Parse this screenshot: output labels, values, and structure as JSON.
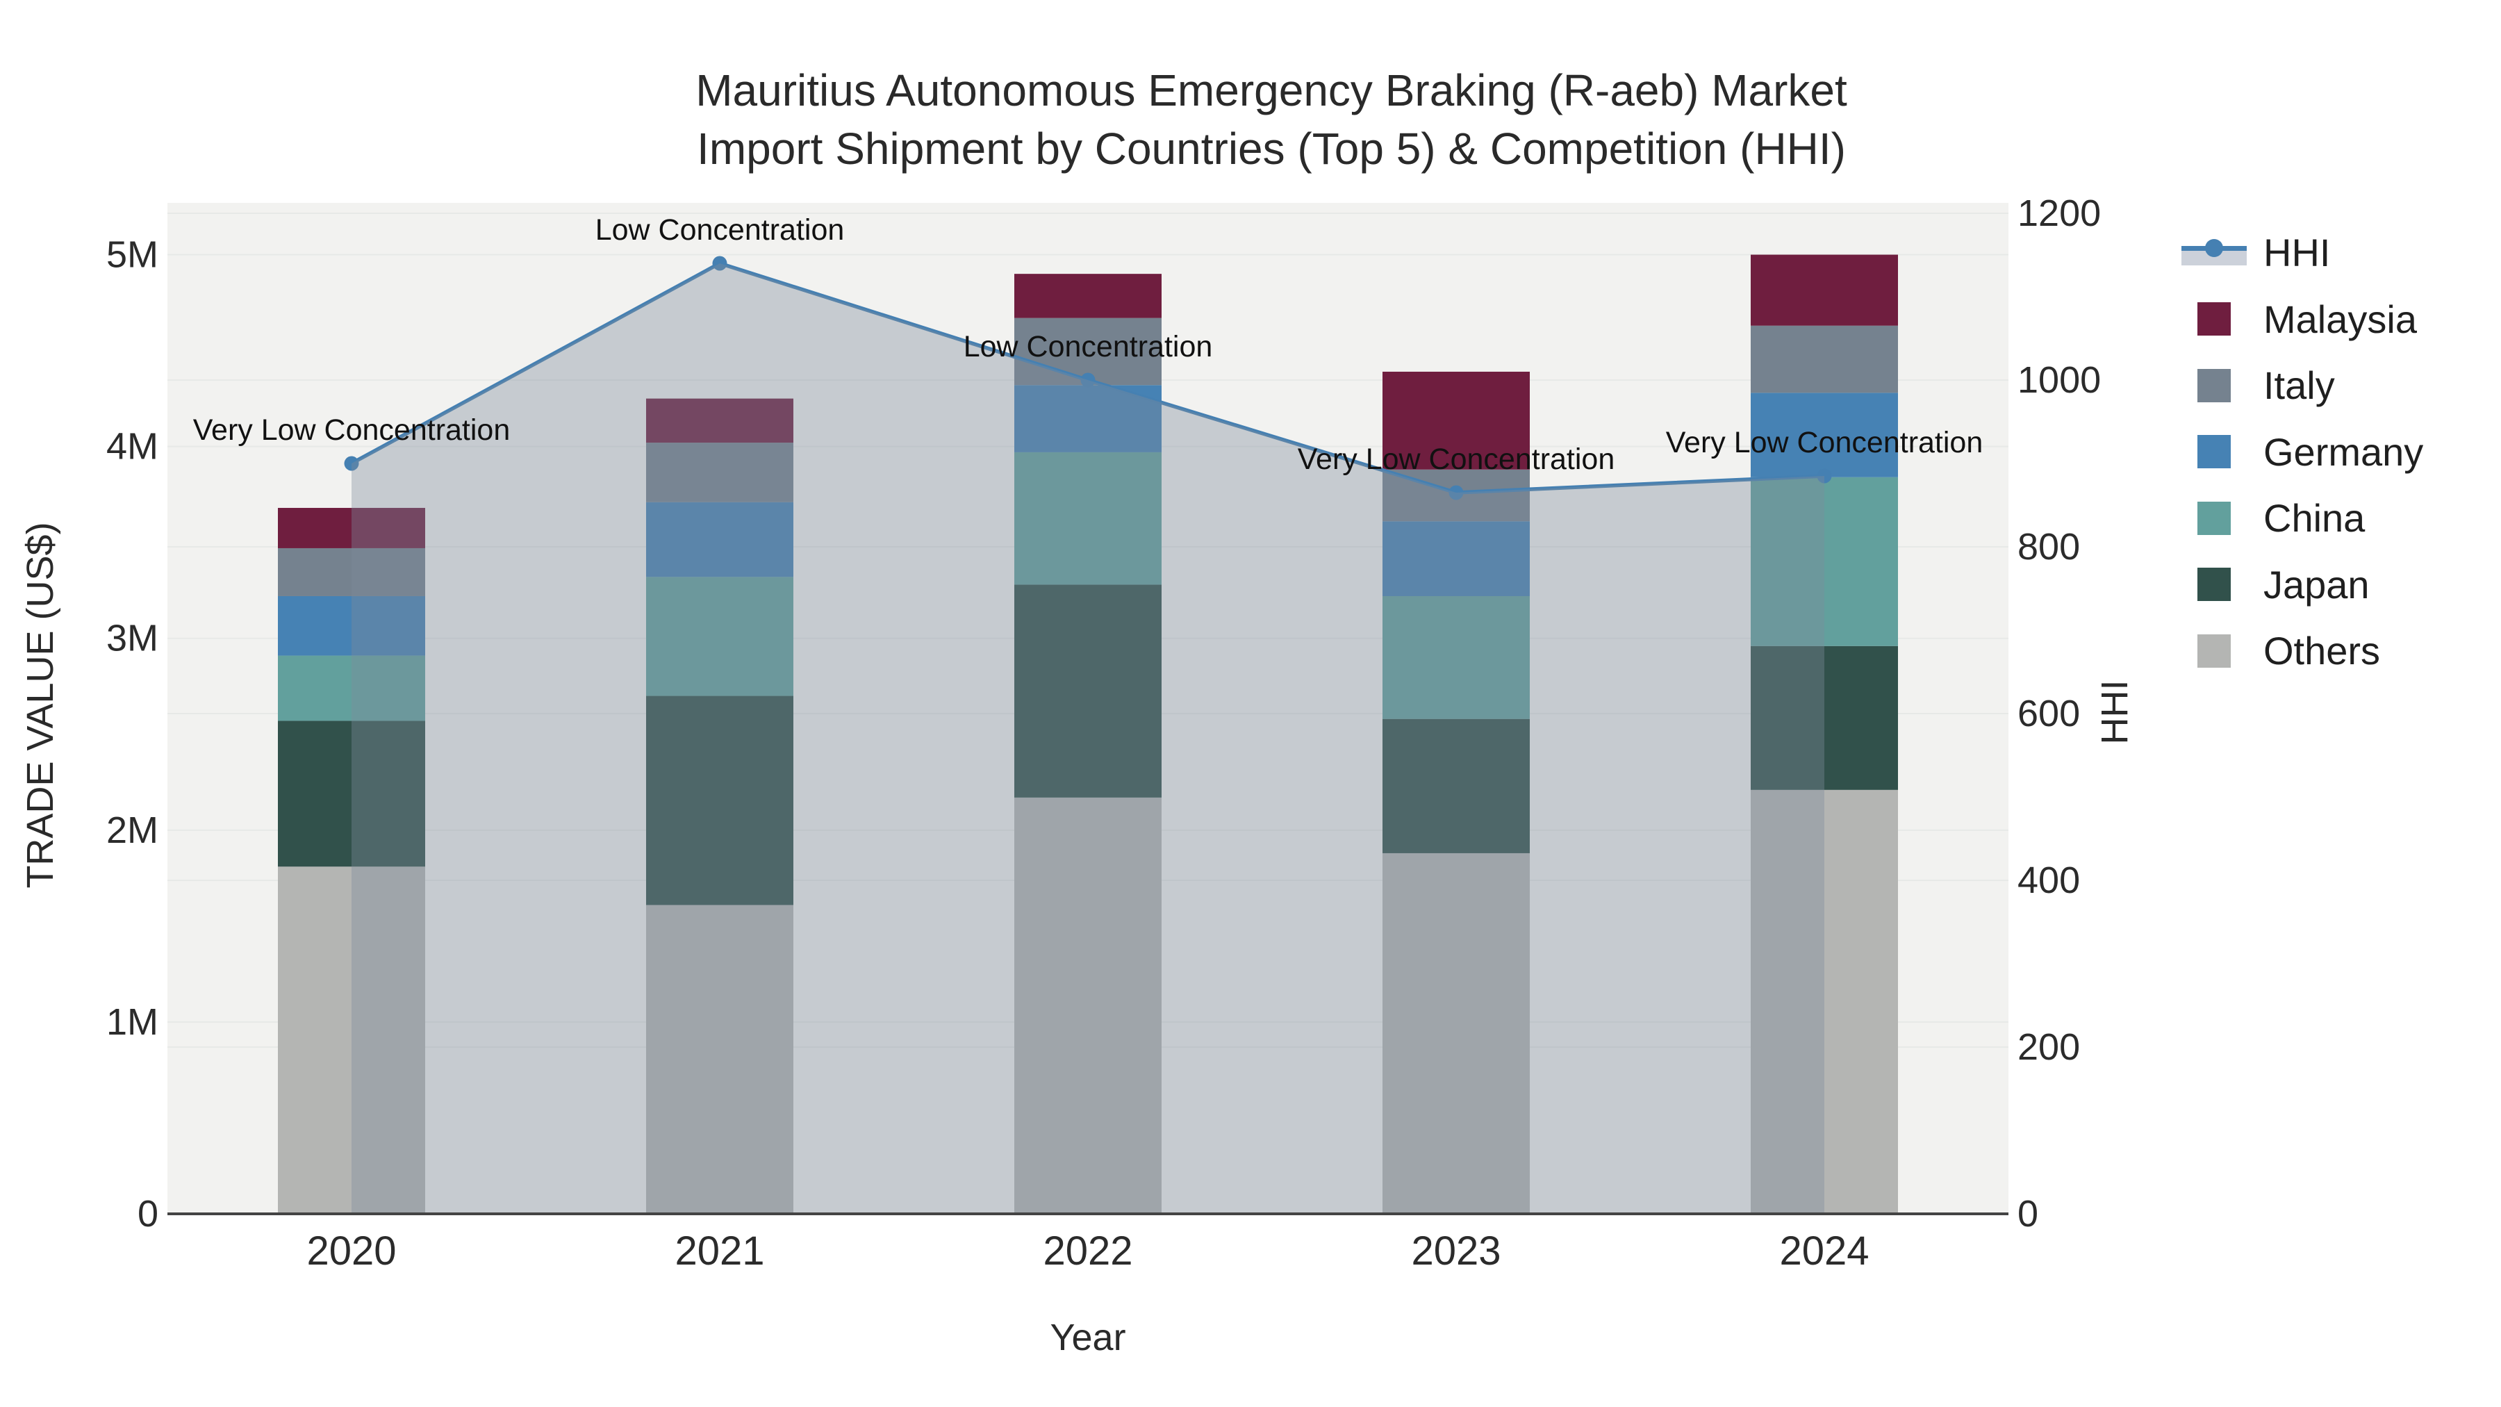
{
  "chart_data": {
    "type": "bar",
    "title_line1": "Mauritius Autonomous Emergency Braking (R-aeb) Market",
    "title_line2": "Import Shipment by Countries (Top 5) & Competition (HHI)",
    "categories": [
      "2020",
      "2021",
      "2022",
      "2023",
      "2024"
    ],
    "values_unit": "US$ millions (trade value, left axis)",
    "series": [
      {
        "name": "Others",
        "color": "#b4b5b3",
        "values": [
          1.81,
          1.61,
          2.17,
          1.88,
          2.21
        ]
      },
      {
        "name": "Japan",
        "color": "#31514b",
        "values": [
          0.76,
          1.09,
          1.11,
          0.7,
          0.75
        ]
      },
      {
        "name": "China",
        "color": "#62a09d",
        "values": [
          0.34,
          0.62,
          0.69,
          0.64,
          0.88
        ]
      },
      {
        "name": "Germany",
        "color": "#4682b4",
        "values": [
          0.31,
          0.39,
          0.35,
          0.39,
          0.44
        ]
      },
      {
        "name": "Italy",
        "color": "#75828f",
        "values": [
          0.25,
          0.31,
          0.35,
          0.27,
          0.35
        ]
      },
      {
        "name": "Malaysia",
        "color": "#6f1e3f",
        "values": [
          0.21,
          0.23,
          0.23,
          0.51,
          0.37
        ]
      }
    ],
    "hhi": {
      "name": "HHI",
      "line_color": "#4580b2",
      "area_color": "rgba(127,140,155,0.38)",
      "legend_band_color": "#ccd1da",
      "values": [
        900,
        1140,
        1000,
        865,
        885
      ],
      "annotations": [
        "Very Low Concentration",
        "Low Concentration",
        "Low Concentration",
        "Very Low Concentration",
        "Very Low Concentration"
      ]
    },
    "y_left": {
      "title": "TRADE VALUE (US$)",
      "ticks": [
        "0",
        "1M",
        "2M",
        "3M",
        "4M",
        "5M"
      ],
      "tick_values": [
        0,
        1,
        2,
        3,
        4,
        5
      ]
    },
    "y_right": {
      "title": "HHI",
      "ticks": [
        "0",
        "200",
        "400",
        "600",
        "800",
        "1000",
        "1200"
      ],
      "tick_values": [
        0,
        200,
        400,
        600,
        800,
        1000,
        1200
      ]
    },
    "x_axis": {
      "title": "Year"
    },
    "legend_order": [
      "HHI",
      "Malaysia",
      "Italy",
      "Germany",
      "China",
      "Japan",
      "Others"
    ],
    "layout_hints": {
      "plot_bg": "#f2f2f0",
      "grid_color": "#e7e9e7",
      "axisline_color": "#444444",
      "legend_position": "right",
      "grid": "on"
    }
  }
}
